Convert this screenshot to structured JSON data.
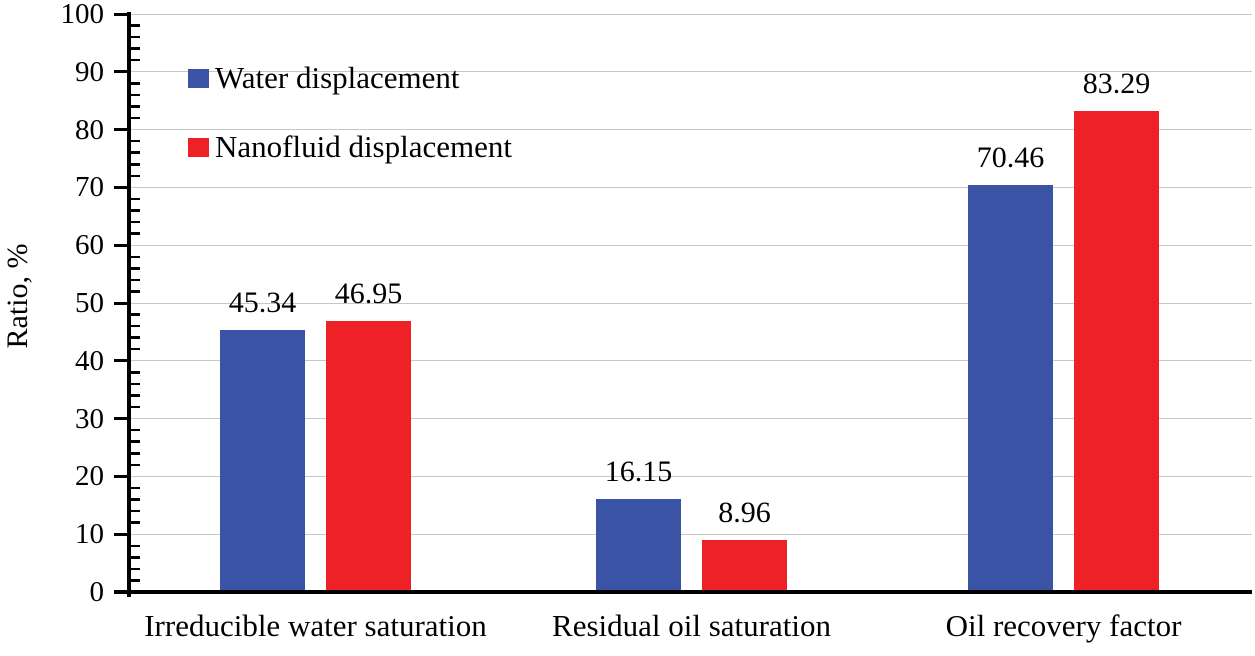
{
  "chart_data": {
    "type": "bar",
    "title": "",
    "xlabel": "",
    "ylabel": "Ratio, %",
    "ylim": [
      0,
      100
    ],
    "y_ticks": [
      0,
      10,
      20,
      30,
      40,
      50,
      60,
      70,
      80,
      90,
      100
    ],
    "y_minor_step": 2,
    "grid": true,
    "legend_position": "top-left-inside",
    "categories": [
      "Irreducible water saturation",
      "Residual oil saturation",
      "Oil recovery factor"
    ],
    "series": [
      {
        "name": "Water displacement",
        "color": "#3B53A4",
        "values": [
          45.34,
          16.15,
          70.46
        ]
      },
      {
        "name": "Nanofluid displacement",
        "color": "#EE2127",
        "values": [
          46.95,
          8.96,
          83.29
        ]
      }
    ],
    "value_label_decimals": 2
  },
  "colors": {
    "axis": "#000000",
    "gridline": "#c7c7c7",
    "text": "#000000",
    "background": "#ffffff"
  }
}
